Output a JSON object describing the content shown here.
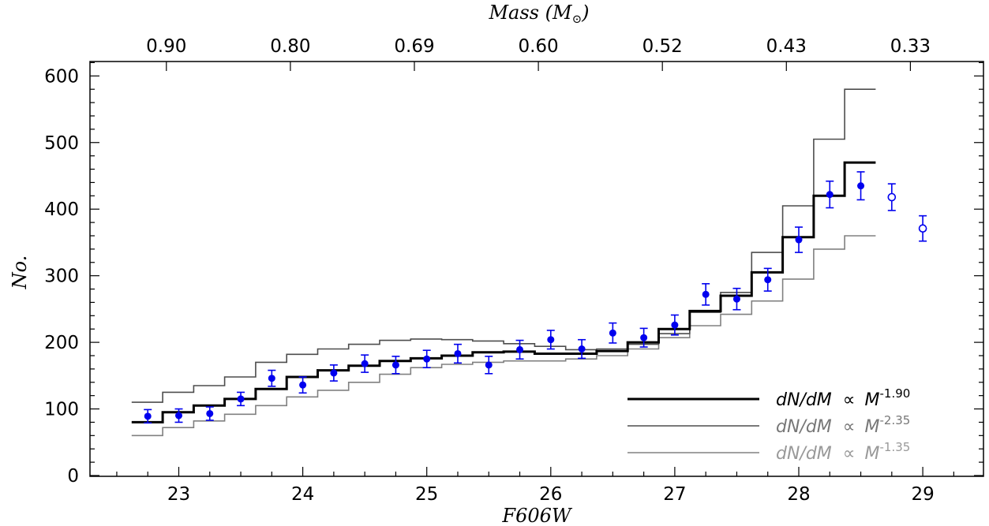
{
  "chart_data": {
    "type": "line",
    "xlabel": "F606W",
    "ylabel": "No.",
    "top_axis_label": "Mass (M",
    "top_axis_label_sub": "⊙",
    "top_axis_label_close": ")",
    "xlim": [
      22.35,
      29.5
    ],
    "ylim": [
      0,
      620
    ],
    "x_ticks": [
      "23",
      "24",
      "25",
      "26",
      "27",
      "28",
      "29"
    ],
    "y_ticks": [
      "0",
      "100",
      "200",
      "300",
      "400",
      "500",
      "600"
    ],
    "top_ticks": [
      {
        "label": "0.90",
        "x": 22.9
      },
      {
        "label": "0.80",
        "x": 23.9
      },
      {
        "label": "0.69",
        "x": 24.9
      },
      {
        "label": "0.60",
        "x": 25.9
      },
      {
        "label": "0.52",
        "x": 26.9
      },
      {
        "label": "0.43",
        "x": 27.9
      },
      {
        "label": "0.33",
        "x": 28.9
      }
    ],
    "observed": [
      {
        "x": 22.75,
        "y": 89,
        "err": 10,
        "open": false
      },
      {
        "x": 23.0,
        "y": 90,
        "err": 10,
        "open": false
      },
      {
        "x": 23.25,
        "y": 93,
        "err": 10,
        "open": false
      },
      {
        "x": 23.5,
        "y": 115,
        "err": 10,
        "open": false
      },
      {
        "x": 23.75,
        "y": 146,
        "err": 12,
        "open": false
      },
      {
        "x": 24.0,
        "y": 136,
        "err": 12,
        "open": false
      },
      {
        "x": 24.25,
        "y": 154,
        "err": 12,
        "open": false
      },
      {
        "x": 24.5,
        "y": 168,
        "err": 13,
        "open": false
      },
      {
        "x": 24.75,
        "y": 166,
        "err": 13,
        "open": false
      },
      {
        "x": 25.0,
        "y": 175,
        "err": 13,
        "open": false
      },
      {
        "x": 25.25,
        "y": 183,
        "err": 14,
        "open": false
      },
      {
        "x": 25.5,
        "y": 166,
        "err": 13,
        "open": false
      },
      {
        "x": 25.75,
        "y": 189,
        "err": 14,
        "open": false
      },
      {
        "x": 26.0,
        "y": 204,
        "err": 14,
        "open": false
      },
      {
        "x": 26.25,
        "y": 190,
        "err": 14,
        "open": false
      },
      {
        "x": 26.5,
        "y": 214,
        "err": 15,
        "open": false
      },
      {
        "x": 26.75,
        "y": 207,
        "err": 14,
        "open": false
      },
      {
        "x": 27.0,
        "y": 226,
        "err": 15,
        "open": false
      },
      {
        "x": 27.25,
        "y": 272,
        "err": 16,
        "open": false
      },
      {
        "x": 27.5,
        "y": 265,
        "err": 16,
        "open": false
      },
      {
        "x": 27.75,
        "y": 294,
        "err": 17,
        "open": false
      },
      {
        "x": 28.0,
        "y": 354,
        "err": 19,
        "open": false
      },
      {
        "x": 28.25,
        "y": 422,
        "err": 20,
        "open": false
      },
      {
        "x": 28.5,
        "y": 435,
        "err": 21,
        "open": false
      },
      {
        "x": 28.75,
        "y": 418,
        "err": 20,
        "open": true
      },
      {
        "x": 29.0,
        "y": 371,
        "err": 19,
        "open": true
      }
    ],
    "step_edges": [
      22.62,
      22.87,
      23.12,
      23.37,
      23.62,
      23.87,
      24.12,
      24.37,
      24.62,
      24.87,
      25.12,
      25.37,
      25.62,
      25.87,
      26.12,
      26.37,
      26.62,
      26.87,
      27.12,
      27.37,
      27.62,
      27.87,
      28.12,
      28.37,
      28.62
    ],
    "series": [
      {
        "name": "dN/dM ∝ M-1.90",
        "values": [
          80,
          95,
          105,
          115,
          130,
          148,
          158,
          165,
          172,
          176,
          180,
          185,
          186,
          183,
          183,
          187,
          200,
          220,
          247,
          270,
          305,
          358,
          420,
          470
        ]
      },
      {
        "name": "dN/dM ∝ M-2.35",
        "values": [
          110,
          125,
          135,
          148,
          170,
          182,
          190,
          197,
          203,
          205,
          204,
          202,
          198,
          194,
          189,
          190,
          197,
          213,
          245,
          275,
          335,
          405,
          505,
          580
        ]
      },
      {
        "name": "dN/dM ∝ M-1.35",
        "values": [
          60,
          72,
          82,
          92,
          105,
          118,
          128,
          140,
          152,
          162,
          167,
          170,
          172,
          172,
          175,
          180,
          190,
          207,
          225,
          242,
          262,
          295,
          340,
          360
        ]
      }
    ],
    "colors": {
      "points": "#0000ee",
      "series_main": "#000000",
      "series_steep": "#4d4d4d",
      "series_shallow": "#808080"
    },
    "legend": {
      "placement": "bottom-right",
      "entries": [
        {
          "prefix": "dN/dM",
          "prop": "∝",
          "base": "M",
          "exp": "-1.90",
          "color": "#000000"
        },
        {
          "prefix": "dN/dM",
          "prop": "∝",
          "base": "M",
          "exp": "-2.35",
          "color": "#777777"
        },
        {
          "prefix": "dN/dM",
          "prop": "∝",
          "base": "M",
          "exp": "-1.35",
          "color": "#999999"
        }
      ]
    }
  }
}
